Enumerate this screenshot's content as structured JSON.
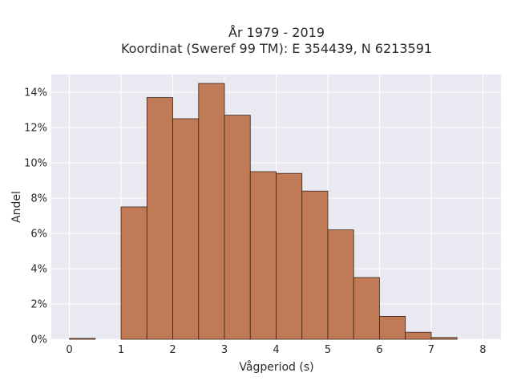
{
  "chart_data": {
    "type": "bar",
    "title": "År 1979 - 2019",
    "subtitle": "Koordinat (Sweref 99 TM): E 354439, N 6213591",
    "xlabel": "Vågperiod (s)",
    "ylabel": "Andel",
    "xlim": [
      -0.35,
      8.35
    ],
    "ylim": [
      0,
      15
    ],
    "x_ticks": [
      0,
      1,
      2,
      3,
      4,
      5,
      6,
      7,
      8
    ],
    "x_tick_labels": [
      "0",
      "1",
      "2",
      "3",
      "4",
      "5",
      "6",
      "7",
      "8"
    ],
    "y_ticks": [
      0,
      2,
      4,
      6,
      8,
      10,
      12,
      14
    ],
    "y_tick_labels": [
      "0%",
      "2%",
      "4%",
      "6%",
      "8%",
      "10%",
      "12%",
      "14%"
    ],
    "grid": true,
    "bar_color": "#c07a56",
    "bar_edge_color": "#3b2418",
    "plot_bg": "#e9e9f1",
    "bins": [
      {
        "start": 0.0,
        "end": 0.5,
        "value": 0.05
      },
      {
        "start": 1.0,
        "end": 1.5,
        "value": 7.5
      },
      {
        "start": 1.5,
        "end": 2.0,
        "value": 13.7
      },
      {
        "start": 2.0,
        "end": 2.5,
        "value": 12.5
      },
      {
        "start": 2.5,
        "end": 3.0,
        "value": 14.5
      },
      {
        "start": 3.0,
        "end": 3.5,
        "value": 12.7
      },
      {
        "start": 3.5,
        "end": 4.0,
        "value": 9.5
      },
      {
        "start": 4.0,
        "end": 4.5,
        "value": 9.4
      },
      {
        "start": 4.5,
        "end": 5.0,
        "value": 8.4
      },
      {
        "start": 5.0,
        "end": 5.5,
        "value": 6.2
      },
      {
        "start": 5.5,
        "end": 6.0,
        "value": 3.5
      },
      {
        "start": 6.0,
        "end": 6.5,
        "value": 1.3
      },
      {
        "start": 6.5,
        "end": 7.0,
        "value": 0.4
      },
      {
        "start": 7.0,
        "end": 7.5,
        "value": 0.1
      }
    ]
  }
}
